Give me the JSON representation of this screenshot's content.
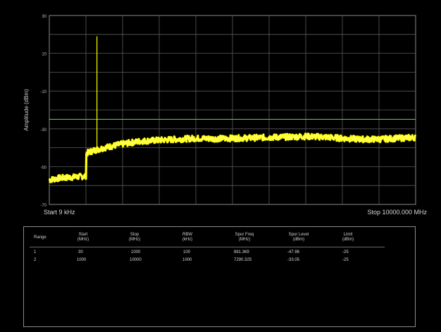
{
  "chart_data": {
    "type": "line",
    "ylabel": "Amplitude (dBm)",
    "y_ticks": [
      "30",
      "10",
      "-10",
      "-30",
      "-50",
      "-70"
    ],
    "ylim": [
      -70,
      30
    ],
    "x_start_label": "Start 9 kHz",
    "x_stop_label": "Stop 10000.000 MHz",
    "xlim": [
      0.009,
      10000
    ],
    "grid": true,
    "limit_line_dbm": -25,
    "spur_peak": {
      "freq_mhz": 1300,
      "level_dbm": 19
    },
    "trace_points": [
      [
        0.009,
        -57
      ],
      [
        300,
        -56
      ],
      [
        700,
        -55.5
      ],
      [
        1000,
        -55
      ],
      [
        1001,
        -43
      ],
      [
        1200,
        -41.5
      ],
      [
        1500,
        -40
      ],
      [
        2000,
        -38
      ],
      [
        2500,
        -36.5
      ],
      [
        3000,
        -36
      ],
      [
        3500,
        -35.5
      ],
      [
        4000,
        -35
      ],
      [
        4500,
        -35.2
      ],
      [
        5000,
        -35
      ],
      [
        5500,
        -34.8
      ],
      [
        6000,
        -34.5
      ],
      [
        6500,
        -34.3
      ],
      [
        7000,
        -34
      ],
      [
        7500,
        -34.3
      ],
      [
        8000,
        -35
      ],
      [
        8500,
        -35.5
      ],
      [
        9000,
        -35.5
      ],
      [
        9500,
        -35
      ],
      [
        10000,
        -34.5
      ]
    ],
    "colors": {
      "trace": "#ffff00",
      "limit": "#2ecc2e",
      "grid": "#5a5a5a",
      "frame": "#8a8a8a"
    }
  },
  "table": {
    "headers": [
      [
        "Range"
      ],
      [
        "Start",
        "(MHz)"
      ],
      [
        "Stop",
        "(MHz)"
      ],
      [
        "RBW",
        "(kHz)"
      ],
      [
        "Spur Freq",
        "(MHz)"
      ],
      [
        "Spur Level",
        "(dBm)"
      ],
      [
        "Limit",
        "(dBm)"
      ]
    ],
    "rows": [
      [
        "1",
        "30",
        "1000",
        "100",
        "881.369",
        "-47.96",
        "-25"
      ],
      [
        "2",
        "1000",
        "10000",
        "1000",
        "7290.325",
        "-33.05",
        "-25"
      ]
    ]
  }
}
